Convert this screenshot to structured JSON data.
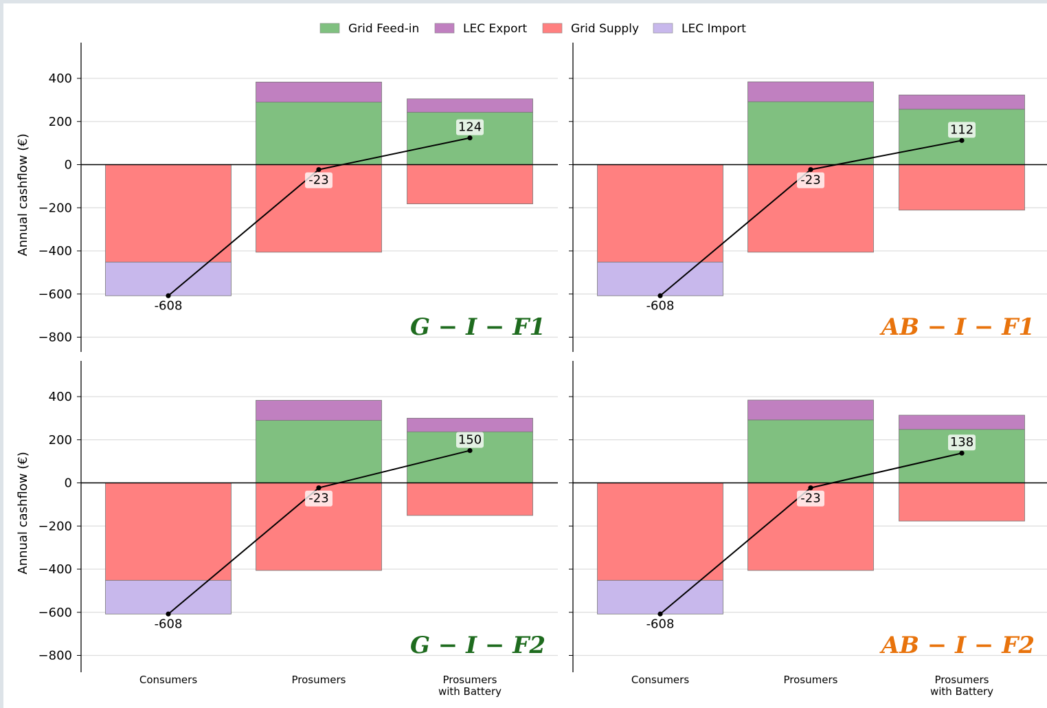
{
  "chart_data": {
    "type": "bar",
    "stacked": true,
    "legend": {
      "placement": "top-center",
      "entries": [
        {
          "name": "Grid Feed-in",
          "color": "#80c080"
        },
        {
          "name": "LEC Export",
          "color": "#c080c0"
        },
        {
          "name": "Grid Supply",
          "color": "#ff8080"
        },
        {
          "name": "LEC Import",
          "color": "#c8b8ec"
        }
      ]
    },
    "ylabel": "Annual cashflow (€)",
    "ylim": [
      -850,
      570
    ],
    "yticks": [
      400,
      200,
      0,
      -200,
      -400,
      -600,
      -800
    ],
    "ytick_labels": [
      "400",
      "200",
      "0",
      "−200",
      "−400",
      "−600",
      "−800"
    ],
    "categories": [
      [
        "Consumers"
      ],
      [
        "Prosumers"
      ],
      [
        "Prosumers",
        "with Battery"
      ]
    ],
    "grid": true,
    "title_colors": {
      "G": "#1e6b1e",
      "AB": "#e8730c"
    },
    "net_line_color": "#000000",
    "panels": [
      {
        "title": "G − I − F1",
        "title_color_key": "G",
        "series": [
          {
            "name": "Grid Feed-in",
            "values": [
              0,
              290,
              243
            ]
          },
          {
            "name": "LEC Export",
            "values": [
              0,
              93,
              62
            ]
          },
          {
            "name": "Grid Supply",
            "values": [
              -452,
              -406,
              -182
            ]
          },
          {
            "name": "LEC Import",
            "values": [
              -156,
              0,
              0
            ]
          }
        ],
        "net": [
          -608,
          -23,
          124
        ],
        "net_labels": [
          "-608",
          "-23",
          "124"
        ]
      },
      {
        "title": "AB − I − F1",
        "title_color_key": "AB",
        "series": [
          {
            "name": "Grid Feed-in",
            "values": [
              0,
              292,
              257
            ]
          },
          {
            "name": "LEC Export",
            "values": [
              0,
              92,
              66
            ]
          },
          {
            "name": "Grid Supply",
            "values": [
              -452,
              -406,
              -211
            ]
          },
          {
            "name": "LEC Import",
            "values": [
              -156,
              0,
              0
            ]
          }
        ],
        "net": [
          -608,
          -23,
          112
        ],
        "net_labels": [
          "-608",
          "-23",
          "112"
        ]
      },
      {
        "title": "G − I − F2",
        "title_color_key": "G",
        "series": [
          {
            "name": "Grid Feed-in",
            "values": [
              0,
              290,
              237
            ]
          },
          {
            "name": "LEC Export",
            "values": [
              0,
              93,
              63
            ]
          },
          {
            "name": "Grid Supply",
            "values": [
              -452,
              -406,
              -151
            ]
          },
          {
            "name": "LEC Import",
            "values": [
              -156,
              0,
              0
            ]
          }
        ],
        "net": [
          -608,
          -23,
          150
        ],
        "net_labels": [
          "-608",
          "-23",
          "150"
        ]
      },
      {
        "title": "AB − I − F2",
        "title_color_key": "AB",
        "series": [
          {
            "name": "Grid Feed-in",
            "values": [
              0,
              292,
              248
            ]
          },
          {
            "name": "LEC Export",
            "values": [
              0,
              92,
              66
            ]
          },
          {
            "name": "Grid Supply",
            "values": [
              -452,
              -406,
              -177
            ]
          },
          {
            "name": "LEC Import",
            "values": [
              -156,
              0,
              0
            ]
          }
        ],
        "net": [
          -608,
          -23,
          138
        ],
        "net_labels": [
          "-608",
          "-23",
          "138"
        ]
      }
    ]
  }
}
